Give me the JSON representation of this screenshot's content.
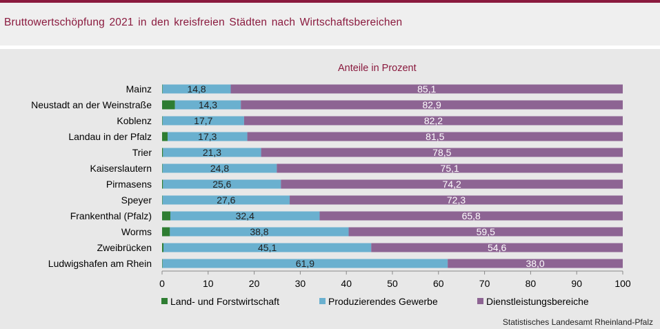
{
  "header": {
    "title": "Bruttowertschöpfung  2021  in den  kreisfreien  Städten  nach  Wirtschaftsbereichen"
  },
  "source": "Statistisches Landesamt  Rheinland-Pfalz",
  "colors": {
    "brand": "#8a1a3e",
    "agriculture": "#2e7d32",
    "industry": "#6ab0cf",
    "services": "#8d6493"
  },
  "chart_data": {
    "type": "bar",
    "orientation": "horizontal",
    "stacked": true,
    "title": "Anteile in Prozent",
    "xlim": [
      0,
      100
    ],
    "xticks": [
      0,
      10,
      20,
      30,
      40,
      50,
      60,
      70,
      80,
      90,
      100
    ],
    "grid": false,
    "legend_position": "bottom",
    "categories": [
      "Mainz",
      "Neustadt an der Weinstraße",
      "Koblenz",
      "Landau in der Pfalz",
      "Trier",
      "Kaiserslautern",
      "Pirmasens",
      "Speyer",
      "Frankenthal (Pfalz)",
      "Worms",
      "Zweibrücken",
      "Ludwigshafen am Rhein"
    ],
    "series": [
      {
        "name": "Land- und Forstwirtschaft",
        "values": [
          0.1,
          2.8,
          0.1,
          1.2,
          0.2,
          0.1,
          0.2,
          0.1,
          1.8,
          1.7,
          0.3,
          0.1
        ],
        "labels": [
          "",
          "",
          "",
          "",
          "",
          "",
          "",
          "",
          "",
          "",
          "",
          ""
        ]
      },
      {
        "name": "Produzierendes Gewerbe",
        "values": [
          14.8,
          14.3,
          17.7,
          17.3,
          21.3,
          24.8,
          25.6,
          27.6,
          32.4,
          38.8,
          45.1,
          61.9
        ],
        "labels": [
          "14,8",
          "14,3",
          "17,7",
          "17,3",
          "21,3",
          "24,8",
          "25,6",
          "27,6",
          "32,4",
          "38,8",
          "45,1",
          "61,9"
        ]
      },
      {
        "name": "Dienstleistungsbereiche",
        "values": [
          85.1,
          82.9,
          82.2,
          81.5,
          78.5,
          75.1,
          74.2,
          72.3,
          65.8,
          59.5,
          54.6,
          38.0
        ],
        "labels": [
          "85,1",
          "82,9",
          "82,2",
          "81,5",
          "78,5",
          "75,1",
          "74,2",
          "72,3",
          "65,8",
          "59,5",
          "54,6",
          "38,0"
        ]
      }
    ]
  }
}
